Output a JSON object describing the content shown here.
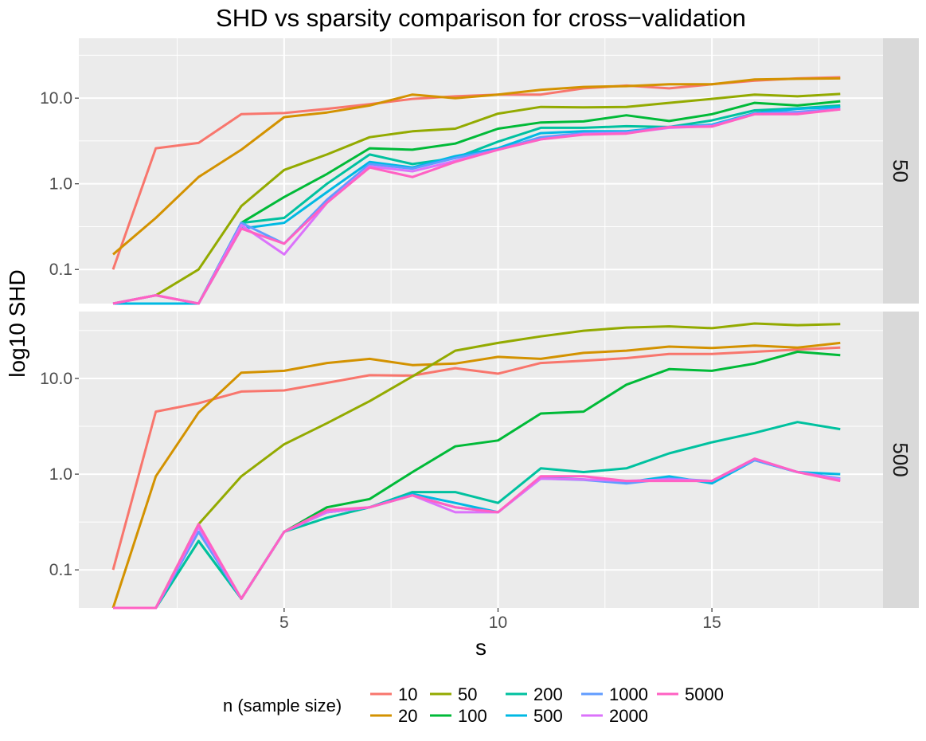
{
  "chart_data": {
    "type": "line",
    "title": "SHD vs sparsity comparison for cross−validation",
    "xlabel": "s",
    "ylabel": "log10 SHD",
    "x_range": [
      0.2,
      19.0
    ],
    "x_ticks": [
      5,
      10,
      15
    ],
    "y_scale": "log10",
    "y_range": [
      0.04,
      50
    ],
    "y_ticks": [
      0.1,
      1.0,
      10.0
    ],
    "y_tick_labels": [
      "0.1",
      "1.0",
      "10.0"
    ],
    "x": [
      1,
      2,
      3,
      4,
      5,
      6,
      7,
      8,
      9,
      10,
      11,
      12,
      13,
      14,
      15,
      16,
      17,
      18
    ],
    "legend": {
      "title": "n (sample size)",
      "position": "bottom",
      "entries": [
        "10",
        "20",
        "50",
        "100",
        "200",
        "500",
        "1000",
        "2000",
        "5000"
      ]
    },
    "colors": {
      "10": "#F8766D",
      "20": "#D39200",
      "50": "#93AA00",
      "100": "#00BA38",
      "200": "#00C19F",
      "500": "#00B9E3",
      "1000": "#619CFF",
      "2000": "#DB72FB",
      "5000": "#FF61C3"
    },
    "panels": [
      {
        "label": "50",
        "series": [
          {
            "name": "10",
            "values": [
              0.1,
              2.6,
              3.0,
              6.5,
              6.7,
              7.5,
              8.5,
              9.8,
              10.5,
              11.0,
              11.0,
              13.0,
              14.0,
              13.0,
              14.5,
              16.0,
              17.0,
              17.5
            ]
          },
          {
            "name": "20",
            "values": [
              0.15,
              0.4,
              1.2,
              2.5,
              6.0,
              6.8,
              8.2,
              11.0,
              10.0,
              11.0,
              12.5,
              13.5,
              13.8,
              14.5,
              14.5,
              16.5,
              16.8,
              17.0
            ]
          },
          {
            "name": "50",
            "values": [
              0.03,
              0.05,
              0.1,
              0.55,
              1.45,
              2.2,
              3.5,
              4.1,
              4.4,
              6.6,
              7.9,
              7.8,
              7.9,
              8.8,
              9.8,
              11.0,
              10.5,
              11.2
            ]
          },
          {
            "name": "100",
            "values": [
              0.03,
              0.04,
              0.03,
              0.35,
              0.7,
              1.3,
              2.6,
              2.5,
              2.95,
              4.4,
              5.2,
              5.35,
              6.3,
              5.4,
              6.5,
              8.8,
              8.2,
              9.2
            ]
          },
          {
            "name": "200",
            "values": [
              0.03,
              0.04,
              0.03,
              0.35,
              0.4,
              1.0,
              2.2,
              1.7,
              2.0,
              3.1,
              4.5,
              4.5,
              4.7,
              4.6,
              5.5,
              7.2,
              7.6,
              8.2
            ]
          },
          {
            "name": "500",
            "values": [
              0.03,
              0.04,
              0.03,
              0.3,
              0.35,
              0.8,
              1.8,
              1.55,
              2.1,
              2.6,
              3.9,
              4.1,
              4.1,
              4.6,
              4.9,
              6.7,
              7.5,
              7.9
            ]
          },
          {
            "name": "1000",
            "values": [
              0.04,
              0.05,
              0.04,
              0.35,
              0.2,
              0.65,
              1.7,
              1.5,
              2.0,
              2.5,
              3.5,
              3.9,
              4.0,
              4.6,
              4.8,
              6.6,
              6.9,
              7.5
            ]
          },
          {
            "name": "2000",
            "values": [
              0.04,
              0.05,
              0.04,
              0.33,
              0.15,
              0.6,
              1.6,
              1.4,
              1.85,
              2.5,
              3.3,
              3.8,
              3.9,
              4.5,
              4.7,
              6.5,
              6.6,
              7.4
            ]
          },
          {
            "name": "5000",
            "values": [
              0.04,
              0.05,
              0.04,
              0.3,
              0.2,
              0.6,
              1.55,
              1.2,
              1.8,
              2.5,
              3.3,
              3.75,
              3.85,
              4.6,
              4.65,
              6.5,
              6.5,
              7.4
            ]
          }
        ]
      },
      {
        "label": "500",
        "series": [
          {
            "name": "10",
            "values": [
              0.1,
              4.5,
              5.5,
              7.3,
              7.5,
              9.0,
              10.8,
              10.7,
              12.8,
              11.2,
              14.5,
              15.3,
              16.3,
              18.0,
              18.0,
              19.0,
              20.0,
              21.0
            ]
          },
          {
            "name": "20",
            "values": [
              0.04,
              0.95,
              4.4,
              11.5,
              12.0,
              14.5,
              16.0,
              13.8,
              14.3,
              16.8,
              16.0,
              18.5,
              19.5,
              21.5,
              20.8,
              22.0,
              21.0,
              23.5
            ]
          },
          {
            "name": "50",
            "values": [
              0.03,
              0.04,
              0.3,
              0.95,
              2.05,
              3.4,
              5.8,
              10.5,
              19.5,
              23.5,
              27.5,
              31.5,
              34.0,
              35.0,
              33.5,
              37.5,
              36.0,
              37.0
            ]
          },
          {
            "name": "100",
            "values": [
              0.03,
              0.04,
              0.2,
              0.05,
              0.25,
              0.45,
              0.55,
              1.05,
              1.95,
              2.25,
              4.3,
              4.5,
              8.6,
              12.5,
              12.0,
              14.3,
              19.0,
              17.5
            ]
          },
          {
            "name": "200",
            "values": [
              0.03,
              0.04,
              0.2,
              0.05,
              0.25,
              0.35,
              0.45,
              0.65,
              0.65,
              0.5,
              1.15,
              1.05,
              1.15,
              1.65,
              2.15,
              2.7,
              3.5,
              2.95
            ]
          },
          {
            "name": "500",
            "values": [
              0.03,
              0.04,
              0.25,
              0.05,
              0.25,
              0.4,
              0.45,
              0.62,
              0.5,
              0.4,
              0.92,
              0.88,
              0.82,
              0.95,
              0.8,
              1.4,
              1.05,
              1.0
            ]
          },
          {
            "name": "1000",
            "values": [
              0.03,
              0.04,
              0.25,
              0.05,
              0.25,
              0.4,
              0.45,
              0.6,
              0.45,
              0.4,
              0.9,
              0.87,
              0.8,
              0.9,
              0.85,
              1.4,
              1.05,
              0.9
            ]
          },
          {
            "name": "2000",
            "values": [
              0.03,
              0.04,
              0.28,
              0.05,
              0.25,
              0.4,
              0.45,
              0.6,
              0.4,
              0.4,
              0.9,
              0.88,
              0.85,
              0.88,
              0.85,
              1.45,
              1.05,
              0.88
            ]
          },
          {
            "name": "5000",
            "values": [
              0.04,
              0.04,
              0.3,
              0.05,
              0.25,
              0.42,
              0.45,
              0.6,
              0.45,
              0.4,
              0.95,
              0.95,
              0.85,
              0.85,
              0.85,
              1.45,
              1.05,
              0.85
            ]
          }
        ]
      }
    ]
  }
}
